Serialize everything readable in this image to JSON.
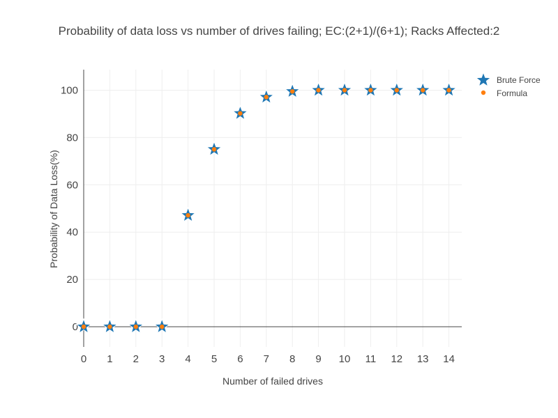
{
  "chart_data": {
    "type": "scatter",
    "title": "Probability of data loss vs number of drives failing; EC:(2+1)/(6+1); Racks Affected:2",
    "xlabel": "Number of failed drives",
    "ylabel": "Probability of Data Loss(%)",
    "xlim": [
      0,
      14.5
    ],
    "ylim": [
      -9,
      109
    ],
    "xticks": [
      0,
      1,
      2,
      3,
      4,
      5,
      6,
      7,
      8,
      9,
      10,
      11,
      12,
      13,
      14
    ],
    "yticks": [
      0,
      20,
      40,
      60,
      80,
      100
    ],
    "grid": true,
    "legend_position": "top-right",
    "series": [
      {
        "name": "Brute Force",
        "marker": "star",
        "color": "#1f77b4",
        "x": [
          0,
          1,
          2,
          3,
          4,
          5,
          6,
          7,
          8,
          9,
          10,
          11,
          12,
          13,
          14
        ],
        "y": [
          0,
          0,
          0,
          0,
          47.1,
          75,
          90.2,
          97.1,
          99.5,
          100,
          100,
          100,
          100,
          100,
          100
        ]
      },
      {
        "name": "Formula",
        "marker": "circle",
        "color": "#ff7f0e",
        "x": [
          0,
          1,
          2,
          3,
          4,
          5,
          6,
          7,
          8,
          9,
          10,
          11,
          12,
          13,
          14
        ],
        "y": [
          0,
          0,
          0,
          0,
          47.1,
          75,
          90.2,
          97.1,
          99.5,
          100,
          100,
          100,
          100,
          100,
          100
        ]
      }
    ]
  }
}
